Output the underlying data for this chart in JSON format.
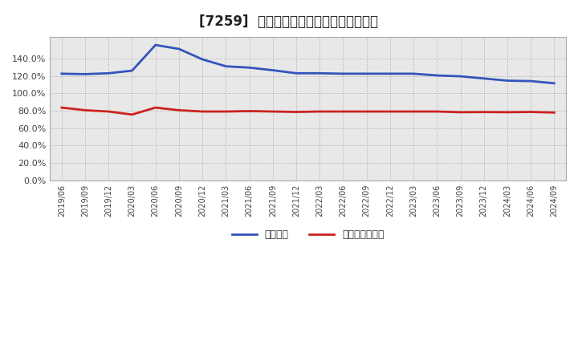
{
  "title": "[7259]  固定比率、固定長期適合率の推移",
  "x_labels": [
    "2019/06",
    "2019/09",
    "2019/12",
    "2020/03",
    "2020/06",
    "2020/09",
    "2020/12",
    "2021/03",
    "2021/06",
    "2021/09",
    "2021/12",
    "2022/03",
    "2022/06",
    "2022/09",
    "2022/12",
    "2023/03",
    "2023/06",
    "2023/09",
    "2023/12",
    "2024/03",
    "2024/06",
    "2024/09"
  ],
  "fixed_ratio": [
    1.225,
    1.22,
    1.23,
    1.26,
    1.555,
    1.51,
    1.39,
    1.31,
    1.295,
    1.265,
    1.23,
    1.23,
    1.225,
    1.225,
    1.225,
    1.225,
    1.205,
    1.195,
    1.17,
    1.145,
    1.14,
    1.115
  ],
  "fixed_long_ratio": [
    0.835,
    0.805,
    0.79,
    0.755,
    0.835,
    0.805,
    0.79,
    0.79,
    0.795,
    0.79,
    0.785,
    0.79,
    0.79,
    0.79,
    0.79,
    0.79,
    0.79,
    0.782,
    0.784,
    0.782,
    0.785,
    0.778
  ],
  "line1_color": "#3355bb",
  "line2_color": "#cc2222",
  "legend1": "固定比率",
  "legend2": "固定長期適合率",
  "background_color": "#ffffff",
  "plot_bg_color": "#e8e8e8",
  "grid_color": "#aaaaaa",
  "title_fontsize": 12
}
